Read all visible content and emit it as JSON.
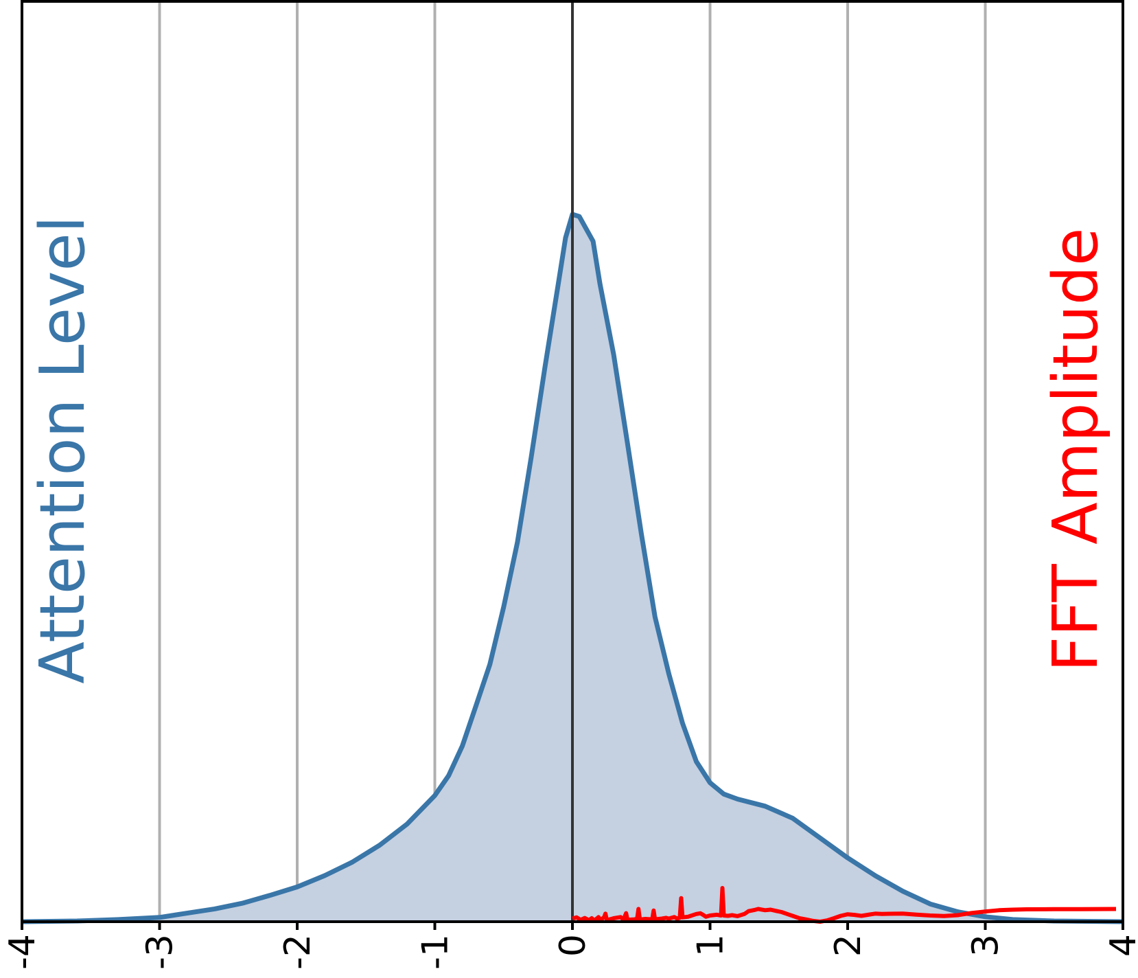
{
  "chart_data": {
    "type": "area",
    "xlim": [
      -4,
      4
    ],
    "x_ticks": [
      "-4",
      "-3",
      "-2",
      "-1",
      "0",
      "1",
      "2",
      "3",
      "4"
    ],
    "grid": "vertical",
    "left_label": "Attention Level",
    "right_label": "FFT Amplitude",
    "colors": {
      "attention_line": "#3a76a8",
      "attention_fill": "#c5d0e1",
      "fft_line": "#ff0000",
      "grid": "#b0b0b0",
      "zero_line": "#333333"
    },
    "series": [
      {
        "key": "attention",
        "style": "filled-line",
        "ylim": [
          0,
          1
        ],
        "points": [
          [
            -4.0,
            0.0
          ],
          [
            -3.6,
            0.001
          ],
          [
            -3.3,
            0.003
          ],
          [
            -3.0,
            0.006
          ],
          [
            -2.8,
            0.012
          ],
          [
            -2.6,
            0.018
          ],
          [
            -2.4,
            0.026
          ],
          [
            -2.2,
            0.037
          ],
          [
            -2.0,
            0.049
          ],
          [
            -1.8,
            0.065
          ],
          [
            -1.6,
            0.084
          ],
          [
            -1.4,
            0.108
          ],
          [
            -1.2,
            0.138
          ],
          [
            -1.0,
            0.178
          ],
          [
            -0.9,
            0.206
          ],
          [
            -0.8,
            0.248
          ],
          [
            -0.7,
            0.305
          ],
          [
            -0.6,
            0.363
          ],
          [
            -0.5,
            0.444
          ],
          [
            -0.4,
            0.535
          ],
          [
            -0.3,
            0.655
          ],
          [
            -0.2,
            0.782
          ],
          [
            -0.1,
            0.903
          ],
          [
            -0.05,
            0.965
          ],
          [
            0.0,
            0.998
          ],
          [
            0.05,
            0.995
          ],
          [
            0.15,
            0.96
          ],
          [
            0.2,
            0.9
          ],
          [
            0.3,
            0.8
          ],
          [
            0.4,
            0.675
          ],
          [
            0.5,
            0.548
          ],
          [
            0.6,
            0.43
          ],
          [
            0.7,
            0.35
          ],
          [
            0.8,
            0.28
          ],
          [
            0.9,
            0.226
          ],
          [
            1.0,
            0.196
          ],
          [
            1.1,
            0.18
          ],
          [
            1.2,
            0.173
          ],
          [
            1.4,
            0.163
          ],
          [
            1.6,
            0.146
          ],
          [
            1.8,
            0.118
          ],
          [
            2.0,
            0.09
          ],
          [
            2.2,
            0.065
          ],
          [
            2.4,
            0.043
          ],
          [
            2.6,
            0.025
          ],
          [
            2.8,
            0.014
          ],
          [
            3.0,
            0.007
          ],
          [
            3.2,
            0.003
          ],
          [
            3.5,
            0.001
          ],
          [
            4.0,
            0.0
          ]
        ]
      },
      {
        "key": "fft",
        "style": "line",
        "ylim": [
          0,
          1
        ],
        "points": [
          [
            0.0,
            0.02
          ],
          [
            0.03,
            0.028
          ],
          [
            0.06,
            0.012
          ],
          [
            0.09,
            0.024
          ],
          [
            0.12,
            0.01
          ],
          [
            0.14,
            0.022
          ],
          [
            0.16,
            0.008
          ],
          [
            0.19,
            0.03
          ],
          [
            0.2,
            0.009
          ],
          [
            0.23,
            0.028
          ],
          [
            0.24,
            0.052
          ],
          [
            0.25,
            0.01
          ],
          [
            0.3,
            0.022
          ],
          [
            0.35,
            0.03
          ],
          [
            0.37,
            0.012
          ],
          [
            0.39,
            0.055
          ],
          [
            0.4,
            0.012
          ],
          [
            0.45,
            0.015
          ],
          [
            0.47,
            0.018
          ],
          [
            0.48,
            0.082
          ],
          [
            0.49,
            0.014
          ],
          [
            0.53,
            0.018
          ],
          [
            0.56,
            0.016
          ],
          [
            0.58,
            0.016
          ],
          [
            0.59,
            0.072
          ],
          [
            0.6,
            0.015
          ],
          [
            0.65,
            0.02
          ],
          [
            0.68,
            0.025
          ],
          [
            0.7,
            0.02
          ],
          [
            0.74,
            0.03
          ],
          [
            0.76,
            0.02
          ],
          [
            0.78,
            0.025
          ],
          [
            0.79,
            0.152
          ],
          [
            0.8,
            0.028
          ],
          [
            0.84,
            0.032
          ],
          [
            0.86,
            0.038
          ],
          [
            0.9,
            0.05
          ],
          [
            0.93,
            0.054
          ],
          [
            0.95,
            0.044
          ],
          [
            0.97,
            0.032
          ],
          [
            1.0,
            0.04
          ],
          [
            1.05,
            0.045
          ],
          [
            1.08,
            0.04
          ],
          [
            1.09,
            0.218
          ],
          [
            1.1,
            0.04
          ],
          [
            1.13,
            0.038
          ],
          [
            1.16,
            0.042
          ],
          [
            1.2,
            0.036
          ],
          [
            1.25,
            0.05
          ],
          [
            1.28,
            0.068
          ],
          [
            1.32,
            0.075
          ],
          [
            1.35,
            0.082
          ],
          [
            1.4,
            0.074
          ],
          [
            1.44,
            0.078
          ],
          [
            1.48,
            0.07
          ],
          [
            1.52,
            0.062
          ],
          [
            1.56,
            0.05
          ],
          [
            1.6,
            0.038
          ],
          [
            1.65,
            0.022
          ],
          [
            1.7,
            0.014
          ],
          [
            1.75,
            0.005
          ],
          [
            1.8,
            0.0
          ],
          [
            1.85,
            0.008
          ],
          [
            1.9,
            0.022
          ],
          [
            1.95,
            0.038
          ],
          [
            2.0,
            0.048
          ],
          [
            2.05,
            0.044
          ],
          [
            2.1,
            0.038
          ],
          [
            2.15,
            0.045
          ],
          [
            2.2,
            0.052
          ],
          [
            2.25,
            0.05
          ],
          [
            2.3,
            0.051
          ],
          [
            2.4,
            0.052
          ],
          [
            2.5,
            0.046
          ],
          [
            2.6,
            0.04
          ],
          [
            2.7,
            0.037
          ],
          [
            2.8,
            0.042
          ],
          [
            2.9,
            0.056
          ],
          [
            3.0,
            0.066
          ],
          [
            3.1,
            0.074
          ],
          [
            3.2,
            0.078
          ],
          [
            3.3,
            0.08
          ],
          [
            3.5,
            0.081
          ],
          [
            3.7,
            0.081
          ],
          [
            3.95,
            0.082
          ]
        ]
      }
    ]
  }
}
